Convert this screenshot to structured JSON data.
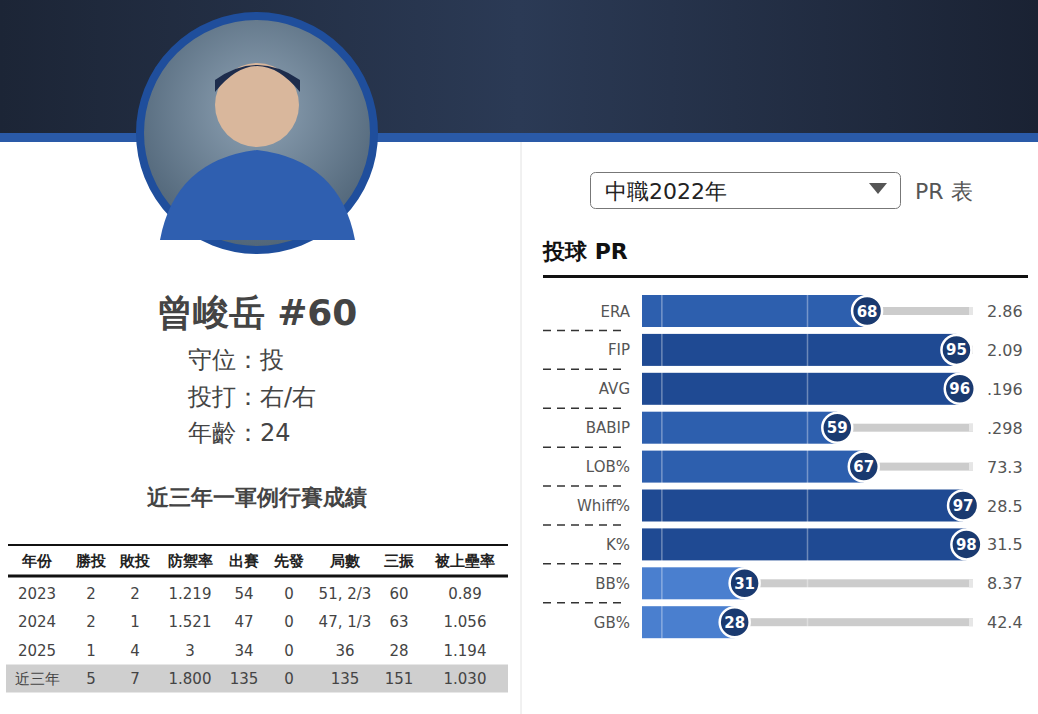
{
  "profile": {
    "name": "曾峻岳 #60",
    "lines": [
      "守位：投",
      "投打：右/右",
      "年齡：24"
    ]
  },
  "table": {
    "title": "近三年一軍例行賽成績",
    "header": [
      "年份",
      "勝投",
      "敗投",
      "防禦率",
      "出賽",
      "先發",
      "局數",
      "三振",
      "被上壘率"
    ],
    "rows": [
      [
        "2023",
        "2",
        "2",
        "1.219",
        "54",
        "0",
        "51, 2/3",
        "60",
        "0.89"
      ],
      [
        "2024",
        "2",
        "1",
        "1.521",
        "47",
        "0",
        "47, 1/3",
        "63",
        "1.056"
      ],
      [
        "2025",
        "1",
        "4",
        "3",
        "34",
        "0",
        "36",
        "28",
        "1.194"
      ],
      [
        "近三年",
        "5",
        "7",
        "1.800",
        "135",
        "0",
        "135",
        "151",
        "1.030"
      ]
    ]
  },
  "selector": {
    "season": "中職2022年",
    "link": "PR 表"
  },
  "chart_data": {
    "type": "bar",
    "orientation": "horizontal",
    "title": "投球 PR",
    "categories": [
      "ERA",
      "FIP",
      "AVG",
      "BABIP",
      "LOB%",
      "Whiff%",
      "K%",
      "BB%",
      "GB%"
    ],
    "values": [
      68,
      95,
      96,
      59,
      67,
      97,
      98,
      31,
      28
    ],
    "stat_labels": [
      "2.86",
      "2.09",
      ".196",
      ".298",
      "73.3",
      "28.5",
      "31.5",
      "8.37",
      "42.4"
    ],
    "colors": [
      "#2d5fae",
      "#1f4a93",
      "#1f4a93",
      "#2d5fae",
      "#2d5fae",
      "#1f4a93",
      "#1f4a93",
      "#4a7fcf",
      "#4a7fcf"
    ],
    "xlim": [
      0,
      100
    ],
    "xticks": [
      6,
      50
    ],
    "grid": true,
    "tick_labels": false,
    "data_labels": true
  }
}
